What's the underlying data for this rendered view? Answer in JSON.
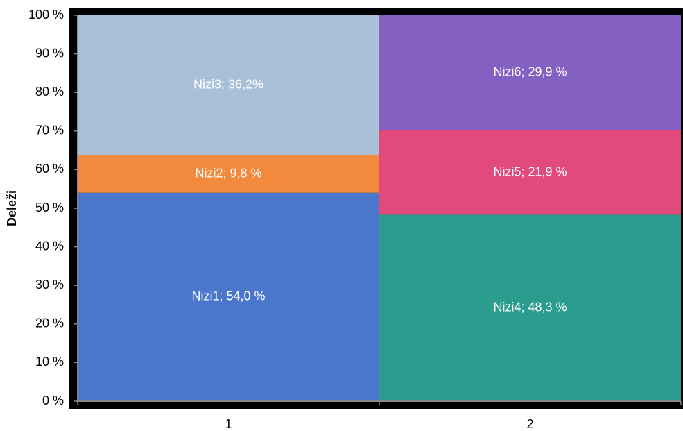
{
  "chart_data": {
    "type": "stacked_bar",
    "y_label": "Deleži",
    "categories": [
      "1",
      "2"
    ],
    "series": [
      {
        "name": "Nizi1",
        "color": "#4a77cb",
        "values": [
          54.0,
          null
        ],
        "value_labels": [
          "Nizi1; 54,0 %",
          null
        ]
      },
      {
        "name": "Nizi2",
        "color": "#f28a3d",
        "values": [
          9.8,
          null
        ],
        "value_labels": [
          "Nizi2; 9,8 %",
          null
        ]
      },
      {
        "name": "Nizi3",
        "color": "#a8c1d8",
        "values": [
          36.2,
          null
        ],
        "value_labels": [
          "Nizi3; 36,2%",
          null
        ]
      },
      {
        "name": "Nizi4",
        "color": "#2a9d8f",
        "values": [
          null,
          48.3
        ],
        "value_labels": [
          null,
          "Nizi4; 48,3 %"
        ]
      },
      {
        "name": "Nizi5",
        "color": "#e24a7b",
        "values": [
          null,
          21.9
        ],
        "value_labels": [
          null,
          "Nizi5; 21,9 %"
        ]
      },
      {
        "name": "Nizi6",
        "color": "#8560c3",
        "values": [
          null,
          29.9
        ],
        "value_labels": [
          null,
          "Nizi6; 29,9 %"
        ]
      }
    ],
    "ylim": [
      0,
      100
    ],
    "yticks": [
      {
        "value": 0,
        "label": "0 %"
      },
      {
        "value": 10,
        "label": "10 %"
      },
      {
        "value": 20,
        "label": "20 %"
      },
      {
        "value": 30,
        "label": "30 %"
      },
      {
        "value": 40,
        "label": "40 %"
      },
      {
        "value": 50,
        "label": "50 %"
      },
      {
        "value": 60,
        "label": "60 %"
      },
      {
        "value": 70,
        "label": "70 %"
      },
      {
        "value": 80,
        "label": "80 %"
      },
      {
        "value": 90,
        "label": "90 %"
      },
      {
        "value": 100,
        "label": "100 %"
      }
    ]
  }
}
